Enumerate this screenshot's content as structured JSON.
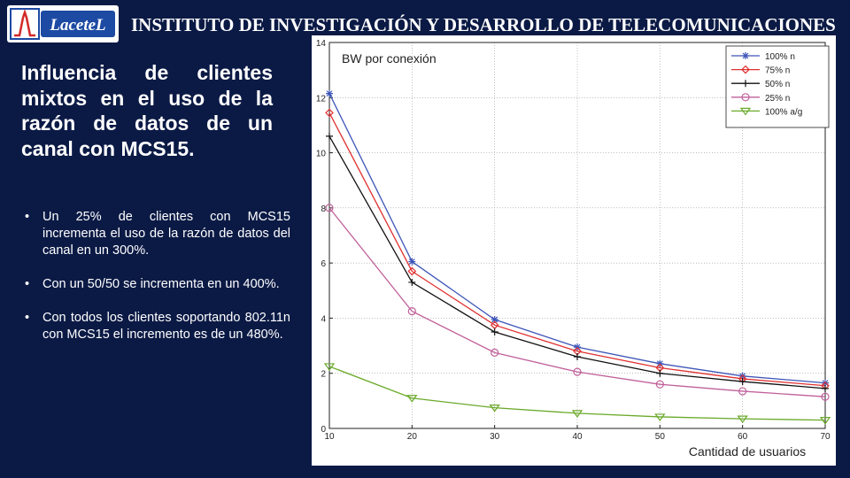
{
  "header": {
    "logo_text": "LaceteL",
    "title": "INSTITUTO DE INVESTIGACIÓN Y DESARROLLO DE TELECOMUNICACIONES"
  },
  "slide": {
    "title": "Influencia de clientes mixtos en el uso de la razón de datos de un canal con MCS15.",
    "bullet_symbol": "•",
    "bullets": [
      "Un 25% de clientes con MCS15 incrementa el uso de la razón de datos del canal en un 300%.",
      "Con un 50/50 se incrementa en un 400%.",
      "Con todos los clientes soportando 802.11n con MCS15 el incremento es de un 480%."
    ]
  },
  "chart_data": {
    "type": "line",
    "ylabel": "BW por conexión",
    "xlabel": "Cantidad de usuarios",
    "x": [
      10,
      20,
      30,
      40,
      50,
      60,
      70
    ],
    "xlim": [
      10,
      70
    ],
    "ylim": [
      0,
      14
    ],
    "xticks": [
      10,
      20,
      30,
      40,
      50,
      60,
      70
    ],
    "yticks": [
      0,
      2,
      4,
      6,
      8,
      10,
      12,
      14
    ],
    "grid": true,
    "legend_position": "top-right",
    "series": [
      {
        "name": "100% n",
        "marker": "star",
        "color": "#3d55b8",
        "values": [
          12.15,
          6.05,
          3.95,
          2.95,
          2.35,
          1.9,
          1.65
        ]
      },
      {
        "name": "75% n",
        "marker": "diamond",
        "color": "#e03030",
        "values": [
          11.45,
          5.7,
          3.75,
          2.8,
          2.2,
          1.8,
          1.55
        ]
      },
      {
        "name": "50% n",
        "marker": "plus",
        "color": "#111111",
        "values": [
          10.6,
          5.3,
          3.5,
          2.6,
          2.0,
          1.7,
          1.45
        ]
      },
      {
        "name": "25% n",
        "marker": "circle",
        "color": "#c0609a",
        "values": [
          8.0,
          4.25,
          2.75,
          2.05,
          1.6,
          1.35,
          1.15
        ]
      },
      {
        "name": "100% a/g",
        "marker": "triangle",
        "color": "#6aaa2a",
        "values": [
          2.25,
          1.1,
          0.75,
          0.55,
          0.42,
          0.35,
          0.3
        ]
      }
    ]
  },
  "colors": {
    "background": "#0b1a45",
    "logo_blue": "#1d4aa3",
    "logo_red": "#d32a2a"
  }
}
